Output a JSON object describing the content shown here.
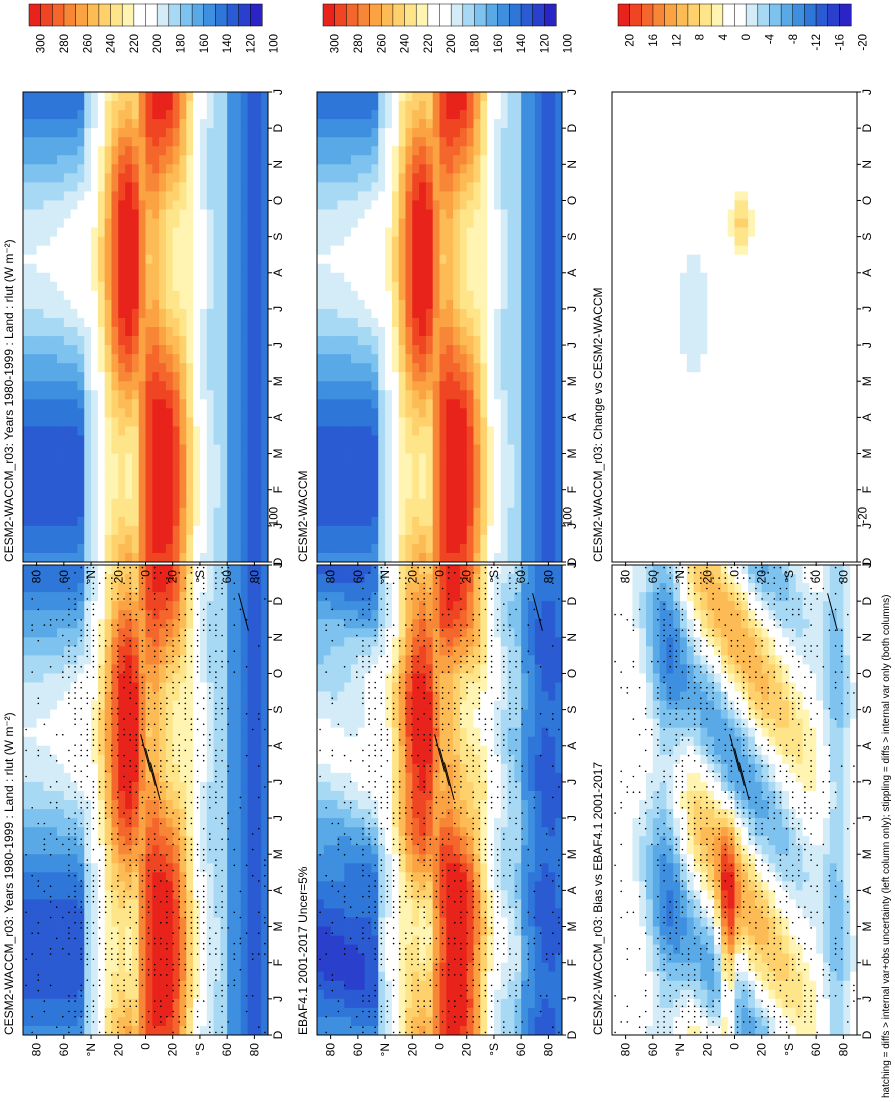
{
  "footer_note": "hatching = diffs > internal var+obs uncertainty (left column only); stippling = diffs > internal var only (both columns)",
  "colors": {
    "abs_scale": [
      "#e8231b",
      "#f04522",
      "#f4662b",
      "#f78636",
      "#fba243",
      "#fdbb56",
      "#fed16c",
      "#fee58a",
      "#fff4b1",
      "#ffffff",
      "#ffffff",
      "#d3ecf8",
      "#a7d9f4",
      "#7ec3ef",
      "#5aa9e7",
      "#3e8fe0",
      "#2f76d9",
      "#2b5bd2",
      "#2a40cc",
      "#2a24c6"
    ],
    "diff_scale": [
      "#e8231b",
      "#f04522",
      "#f4662b",
      "#f78636",
      "#fba243",
      "#fdbb56",
      "#fed16c",
      "#fee58a",
      "#fff4b1",
      "#ffffff",
      "#ffffff",
      "#d3ecf8",
      "#a7d9f4",
      "#7ec3ef",
      "#5aa9e7",
      "#3e8fe0",
      "#2f76d9",
      "#2b5bd2",
      "#2a40cc",
      "#2a24c6"
    ]
  },
  "chart_data": [
    {
      "id": "p1",
      "type": "heatmap",
      "title": "CESM2-WACCM_r03: Years 1980-1999 : Land : rlut (W m⁻²)",
      "x_ticks": [
        "D",
        "J",
        "F",
        "M",
        "A",
        "M",
        "J",
        "J",
        "A",
        "S",
        "O",
        "N",
        "D",
        "J"
      ],
      "y_ticks": [
        "80",
        "60",
        "°N",
        "20",
        "0",
        "20",
        "°S",
        "60",
        "80"
      ],
      "ylim": [
        -90,
        90
      ],
      "field": "abs",
      "stipple": true,
      "hatch": true,
      "colorbar_ticks": [
        "300",
        "280",
        "260",
        "240",
        "220",
        "200",
        "180",
        "160",
        "140",
        "120",
        "100"
      ],
      "colorbar_range": [
        100,
        300
      ]
    },
    {
      "id": "p2",
      "type": "heatmap",
      "title": "CESM2-WACCM_r03: Years 1980-1999 : Land : rlut (W m⁻²)",
      "x_ticks": [
        "D",
        "J",
        "F",
        "M",
        "A",
        "M",
        "J",
        "J",
        "A",
        "S",
        "O",
        "N",
        "D",
        "J"
      ],
      "y_ticks": [
        "80",
        "60",
        "°N",
        "20",
        "0",
        "20",
        "°S",
        "60",
        "80"
      ],
      "ylim": [
        -90,
        90
      ],
      "field": "abs",
      "stipple": false,
      "hatch": false,
      "colorbar_ticks": [
        "300",
        "280",
        "260",
        "240",
        "220",
        "200",
        "180",
        "160",
        "140",
        "120",
        "100"
      ],
      "colorbar_range": [
        100,
        300
      ]
    },
    {
      "id": "p3",
      "type": "heatmap",
      "title": "EBAF4.1 2001-2017 Uncer=5%",
      "x_ticks": [
        "D",
        "J",
        "F",
        "M",
        "A",
        "M",
        "J",
        "J",
        "A",
        "S",
        "O",
        "N",
        "D",
        "J"
      ],
      "y_ticks": [
        "80",
        "60",
        "°N",
        "20",
        "0",
        "20",
        "°S",
        "60",
        "80"
      ],
      "ylim": [
        -90,
        90
      ],
      "field": "abs2",
      "stipple": true,
      "hatch": true,
      "colorbar_ticks": [
        "300",
        "280",
        "260",
        "240",
        "220",
        "200",
        "180",
        "160",
        "140",
        "120",
        "100"
      ],
      "colorbar_range": [
        100,
        300
      ]
    },
    {
      "id": "p4",
      "type": "heatmap",
      "title": "CESM2-WACCM",
      "x_ticks": [
        "D",
        "J",
        "F",
        "M",
        "A",
        "M",
        "J",
        "J",
        "A",
        "S",
        "O",
        "N",
        "D",
        "J"
      ],
      "y_ticks": [
        "80",
        "60",
        "°N",
        "20",
        "0",
        "20",
        "°S",
        "60",
        "80"
      ],
      "ylim": [
        -90,
        90
      ],
      "field": "abs",
      "stipple": false,
      "hatch": false,
      "colorbar_ticks": [
        "300",
        "280",
        "260",
        "240",
        "220",
        "200",
        "180",
        "160",
        "140",
        "120",
        "100"
      ],
      "colorbar_range": [
        100,
        300
      ]
    },
    {
      "id": "p5",
      "type": "heatmap",
      "title": "CESM2-WACCM_r03: Bias vs EBAF4.1 2001-2017",
      "x_ticks": [
        "D",
        "J",
        "F",
        "M",
        "A",
        "M",
        "J",
        "J",
        "A",
        "S",
        "O",
        "N",
        "D",
        "J"
      ],
      "y_ticks": [
        "80",
        "60",
        "°N",
        "20",
        "0",
        "20",
        "°S",
        "60",
        "80"
      ],
      "ylim": [
        -90,
        90
      ],
      "field": "bias",
      "stipple": true,
      "hatch": true,
      "colorbar_ticks": [
        "20",
        "16",
        "12",
        "8",
        "4",
        "0",
        "-4",
        "-8",
        "-12",
        "-16",
        "-20"
      ],
      "colorbar_range": [
        -20,
        20
      ]
    },
    {
      "id": "p6",
      "type": "heatmap",
      "title": "CESM2-WACCM_r03: Change vs CESM2-WACCM",
      "x_ticks": [
        "D",
        "J",
        "F",
        "M",
        "A",
        "M",
        "J",
        "J",
        "A",
        "S",
        "O",
        "N",
        "D",
        "J"
      ],
      "y_ticks": [
        "80",
        "60",
        "°N",
        "20",
        "0",
        "20",
        "°S",
        "60",
        "80"
      ],
      "ylim": [
        -90,
        90
      ],
      "field": "change",
      "stipple": false,
      "hatch": false,
      "colorbar_ticks": [
        "20",
        "16",
        "12",
        "8",
        "4",
        "0",
        "-4",
        "-8",
        "-12",
        "-16",
        "-20"
      ],
      "colorbar_range": [
        -20,
        20
      ]
    }
  ]
}
